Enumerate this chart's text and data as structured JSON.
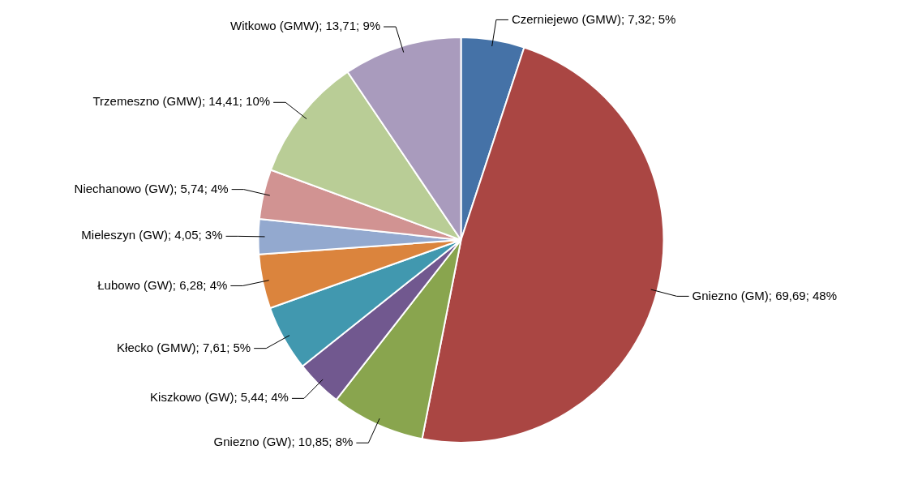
{
  "chart_data": {
    "type": "pie",
    "categories": [
      "Czerniejewo (GMW)",
      "Gniezno (GM)",
      "Gniezno (GW)",
      "Kiszkowo (GW)",
      "Kłecko (GMW)",
      "Łubowo (GW)",
      "Mieleszyn (GW)",
      "Niechanowo (GW)",
      "Trzemeszno (GMW)",
      "Witkowo (GMW)"
    ],
    "values": [
      7.32,
      69.69,
      10.85,
      5.44,
      7.61,
      6.28,
      4.05,
      5.74,
      14.41,
      13.71
    ],
    "value_labels": [
      "7,32; 5%",
      "69,69; 48%",
      "10,85; 8%",
      "5,44; 4%",
      "7,61; 5%",
      "6,28; 4%",
      "4,05; 3%",
      "5,74; 4%",
      "14,41; 10%",
      "13,71; 9%"
    ],
    "colors": [
      "#4572a7",
      "#aa4643",
      "#89a54e",
      "#71588f",
      "#4198af",
      "#db843d",
      "#93a9cf",
      "#d19392",
      "#b9cd96",
      "#a99bbd"
    ],
    "legend": false
  }
}
